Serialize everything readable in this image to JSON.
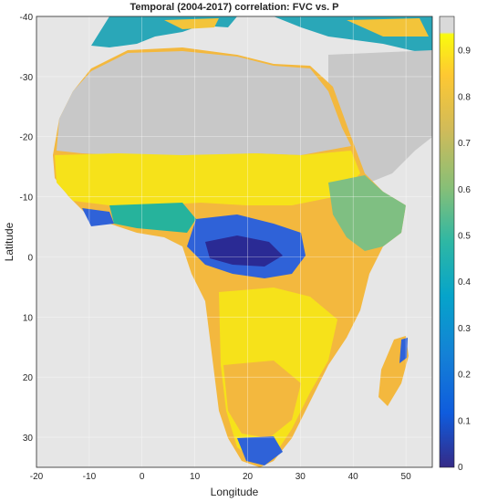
{
  "title": "Temporal (2004-2017) correlation: FVC vs. P",
  "xlabel": "Longitude",
  "ylabel": "Latitude",
  "x_ticks": [
    "-20",
    "-10",
    "0",
    "10",
    "20",
    "30",
    "40",
    "50"
  ],
  "y_ticks": [
    "-40",
    "-30",
    "-20",
    "-10",
    "0",
    "10",
    "20",
    "30"
  ],
  "colorbar_ticks": [
    "0",
    "0.1",
    "0.2",
    "0.3",
    "0.4",
    "0.5",
    "0.6",
    "0.7",
    "0.8",
    "0.9"
  ],
  "colors": {
    "ocean": "#e6e6e6",
    "no_data": "#c8c8c8",
    "high": "#f6e21a",
    "mid_high": "#f3b83e",
    "mid": "#26b39c",
    "low": "#2f62d8",
    "lowest": "#2a2a94"
  },
  "chart_data": {
    "type": "heatmap",
    "title": "Temporal (2004-2017) correlation: FVC vs. P",
    "xlabel": "Longitude",
    "ylabel": "Latitude",
    "xlim": [
      -20,
      55
    ],
    "ylim": [
      -40,
      35
    ],
    "y_axis_reversed": true,
    "colorbar": {
      "min": 0,
      "max": 0.95,
      "ticks": [
        0,
        0.1,
        0.2,
        0.3,
        0.4,
        0.5,
        0.6,
        0.7,
        0.8,
        0.9
      ],
      "colormap": "parula",
      "placement": "right"
    },
    "grid": true
  }
}
